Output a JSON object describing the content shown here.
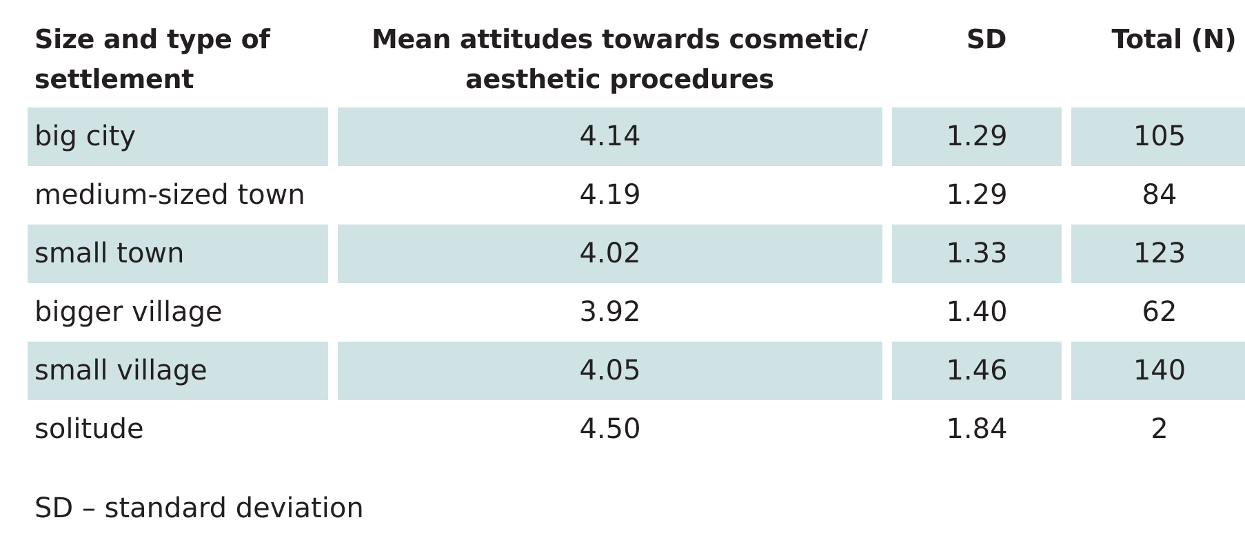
{
  "table": {
    "headers": [
      "Size and type of settlement",
      "Mean attitudes towards cosmetic/ aesthetic procedures",
      "SD",
      "Total (N)"
    ],
    "rows": [
      {
        "settlement": "big city",
        "mean": "4.14",
        "sd": "1.29",
        "total": "105"
      },
      {
        "settlement": "medium-sized town",
        "mean": "4.19",
        "sd": "1.29",
        "total": "84"
      },
      {
        "settlement": "small town",
        "mean": "4.02",
        "sd": "1.33",
        "total": "123"
      },
      {
        "settlement": "bigger village",
        "mean": "3.92",
        "sd": "1.40",
        "total": "62"
      },
      {
        "settlement": "small village",
        "mean": "4.05",
        "sd": "1.46",
        "total": "140"
      },
      {
        "settlement": "solitude",
        "mean": "4.50",
        "sd": "1.84",
        "total": "2"
      }
    ]
  },
  "footnote": "SD – standard deviation",
  "colors": {
    "shaded_row": "#cfe3e4",
    "text": "#231f20"
  }
}
